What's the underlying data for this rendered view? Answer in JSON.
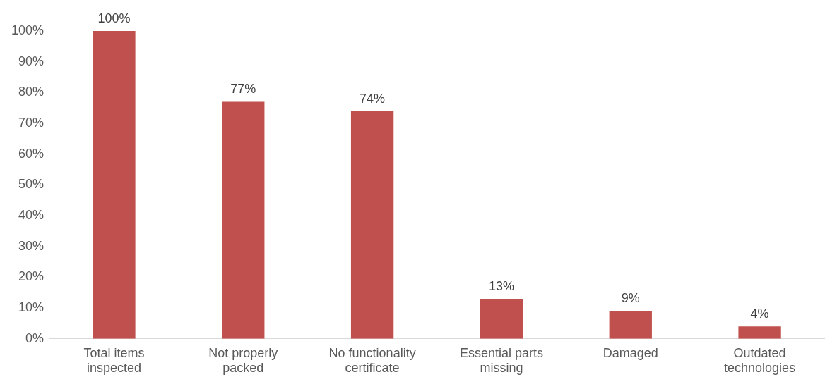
{
  "chart_data": {
    "type": "bar",
    "categories": [
      "Total items inspected",
      "Not properly packed",
      "No functionality certificate",
      "Essential parts missing",
      "Damaged",
      "Outdated technologies"
    ],
    "values": [
      100,
      77,
      74,
      13,
      9,
      4
    ],
    "color": "#c0504d",
    "ylim": [
      0,
      100
    ],
    "yticks": [
      {
        "value": 0,
        "label": "0%"
      },
      {
        "value": 10,
        "label": "10%"
      },
      {
        "value": 20,
        "label": "20%"
      },
      {
        "value": 30,
        "label": "30%"
      },
      {
        "value": 40,
        "label": "40%"
      },
      {
        "value": 50,
        "label": "50%"
      },
      {
        "value": 60,
        "label": "60%"
      },
      {
        "value": 70,
        "label": "70%"
      },
      {
        "value": 80,
        "label": "80%"
      },
      {
        "value": 90,
        "label": "90%"
      },
      {
        "value": 100,
        "label": "100%"
      }
    ],
    "value_labels": [
      "100%",
      "77%",
      "74%",
      "13%",
      "9%",
      "4%"
    ],
    "grid": false,
    "legend": false
  }
}
